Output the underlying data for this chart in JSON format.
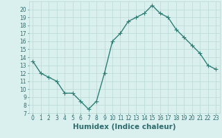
{
  "x": [
    0,
    1,
    2,
    3,
    4,
    5,
    6,
    7,
    8,
    9,
    10,
    11,
    12,
    13,
    14,
    15,
    16,
    17,
    18,
    19,
    20,
    21,
    22,
    23
  ],
  "y": [
    13.5,
    12.0,
    11.5,
    11.0,
    9.5,
    9.5,
    8.5,
    7.5,
    8.5,
    12.0,
    16.0,
    17.0,
    18.5,
    19.0,
    19.5,
    20.5,
    19.5,
    19.0,
    17.5,
    16.5,
    15.5,
    14.5,
    13.0,
    12.5
  ],
  "line_color": "#2d7d74",
  "marker": "+",
  "marker_size": 4,
  "linewidth": 1.0,
  "xlabel": "Humidex (Indice chaleur)",
  "bg_color": "#d9f0ee",
  "grid_color": "#b8d8d5",
  "xlim": [
    -0.5,
    23.5
  ],
  "ylim": [
    7,
    21
  ],
  "yticks": [
    7,
    8,
    9,
    10,
    11,
    12,
    13,
    14,
    15,
    16,
    17,
    18,
    19,
    20
  ],
  "font_color": "#2d6b6e",
  "tick_fontsize": 5.5,
  "xlabel_fontsize": 7.5
}
